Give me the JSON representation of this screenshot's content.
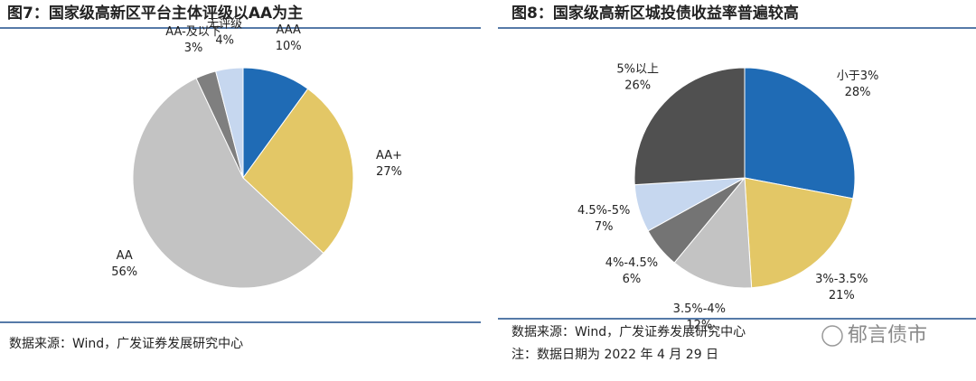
{
  "chart_data": [
    {
      "type": "pie",
      "title": "图7：国家级高新区平台主体评级以AA为主",
      "categories": [
        "AAA",
        "AA+",
        "AA",
        "AA-及以下",
        "无评级"
      ],
      "values": [
        10,
        27,
        56,
        3,
        4
      ],
      "value_labels": [
        "10%",
        "27%",
        "56%",
        "3%",
        "4%"
      ],
      "colors": [
        "#1f6bb5",
        "#e3c766",
        "#c3c3c3",
        "#7f7f7f",
        "#c6d7ef"
      ]
    },
    {
      "type": "pie",
      "title": "图8：国家级高新区城投债收益率普遍较高",
      "categories": [
        "小于3%",
        "3%-3.5%",
        "3.5%-4%",
        "4%-4.5%",
        "4.5%-5%",
        "5%以上"
      ],
      "values": [
        28,
        21,
        12,
        6,
        7,
        26
      ],
      "value_labels": [
        "28%",
        "21%",
        "12%",
        "6%",
        "7%",
        "26%"
      ],
      "colors": [
        "#1f6bb5",
        "#e3c766",
        "#c3c3c3",
        "#747474",
        "#c6d7ef",
        "#505050"
      ]
    }
  ],
  "notes": {
    "left_source": "数据来源：Wind，广发证券发展研究中心",
    "right_source": "数据来源：Wind，广发证券发展研究中心",
    "right_note": "注：数据日期为 2022 年 4 月 29 日",
    "watermark": "郁言债市"
  }
}
